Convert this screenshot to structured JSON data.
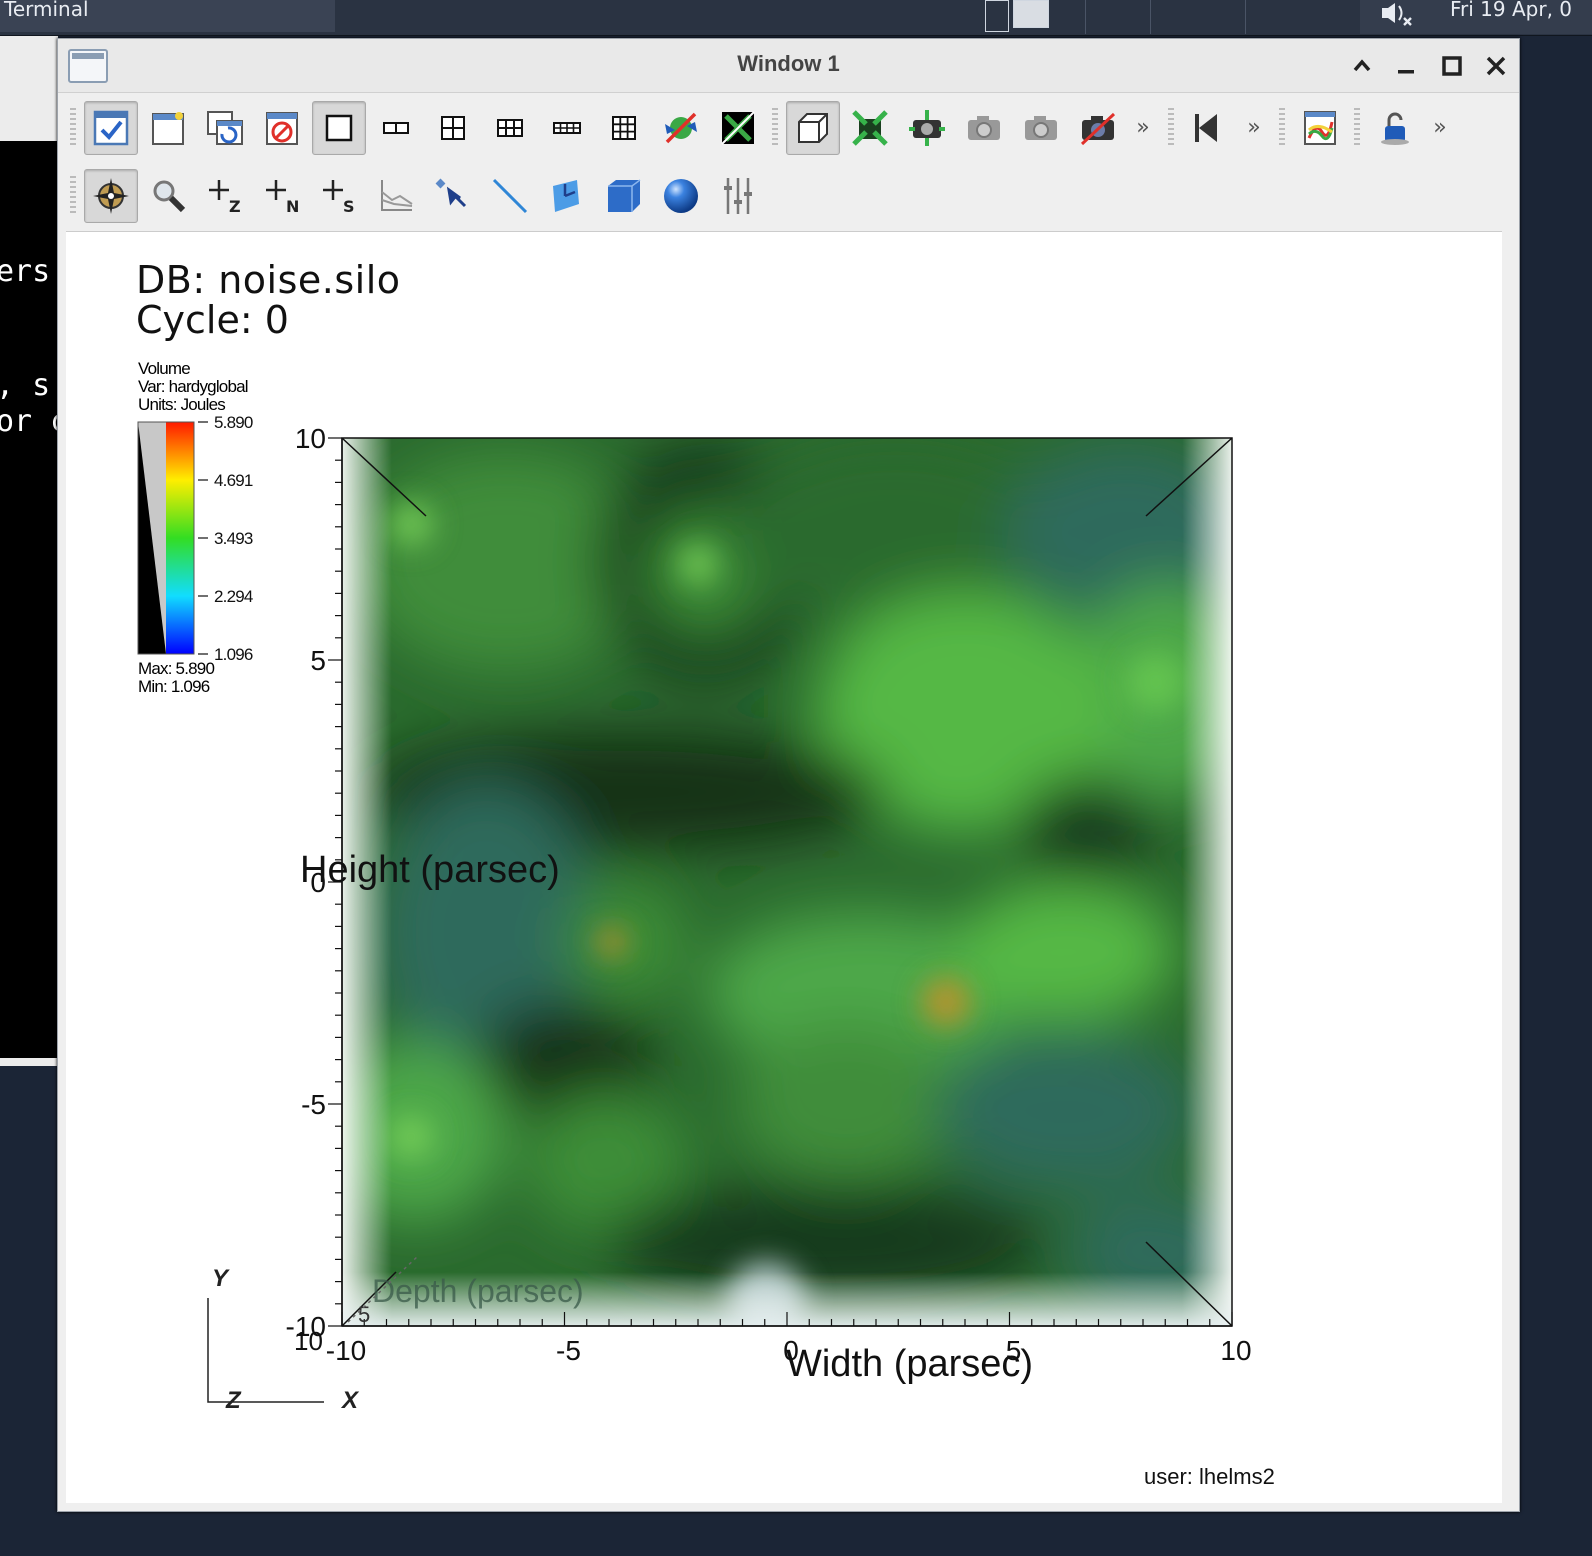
{
  "taskbar": {
    "task_label": "Terminal",
    "clock": "Fri 19 Apr, 0"
  },
  "background_terminal": {
    "lines": [
      "ers",
      ", s",
      "or c"
    ]
  },
  "window": {
    "title": "Window 1",
    "controls": {
      "shade": "^",
      "minimize": "_",
      "maximize": "□",
      "close": "×"
    }
  },
  "toolbar1": {
    "items": [
      {
        "name": "active-window-button",
        "icon": "active-window-check-icon",
        "on": true
      },
      {
        "name": "new-window-button",
        "icon": "new-window-icon",
        "on": false
      },
      {
        "name": "clone-window-button",
        "icon": "clone-window-icon",
        "on": false
      },
      {
        "name": "delete-window-button",
        "icon": "delete-window-icon",
        "on": false
      },
      {
        "name": "layout-1x1-button",
        "icon": "layout-1x1-icon",
        "on": true
      },
      {
        "name": "layout-1x2-button",
        "icon": "layout-1x2-icon",
        "on": false
      },
      {
        "name": "layout-2x2-button",
        "icon": "layout-2x2-icon",
        "on": false
      },
      {
        "name": "layout-2x3-button",
        "icon": "layout-2x3-icon",
        "on": false
      },
      {
        "name": "layout-2x4-button",
        "icon": "layout-2x4-icon",
        "on": false
      },
      {
        "name": "layout-3x3-button",
        "icon": "layout-3x3-icon",
        "on": false
      },
      {
        "name": "toggle-lock-button",
        "icon": "lock-arrows-icon",
        "on": false
      },
      {
        "name": "toggle-full-frame-button",
        "icon": "full-frame-icon",
        "on": false
      }
    ],
    "view_items": [
      {
        "name": "perspective-button",
        "icon": "perspective-cube-icon",
        "on": true
      },
      {
        "name": "reset-view-button",
        "icon": "reset-view-icon",
        "on": false
      },
      {
        "name": "recenter-view-button",
        "icon": "recenter-view-icon",
        "on": false
      },
      {
        "name": "undo-view-button",
        "icon": "camera-undo-icon",
        "on": false
      },
      {
        "name": "redo-view-button",
        "icon": "camera-redo-icon",
        "on": false
      },
      {
        "name": "save-view-button",
        "icon": "camera-saved-icon",
        "on": false
      }
    ],
    "more": "»",
    "anim_items": [
      {
        "name": "animation-reverse-button",
        "icon": "animation-reverse-icon",
        "on": false
      }
    ],
    "misc_items": [
      {
        "name": "lineout-button",
        "icon": "lineout-window-icon",
        "on": false
      },
      {
        "name": "lock-view-button",
        "icon": "padlock-icon",
        "on": false
      }
    ]
  },
  "toolbar2": {
    "items": [
      {
        "name": "navigate-mode-button",
        "icon": "compass-icon",
        "on": true
      },
      {
        "name": "zoom-mode-button",
        "icon": "magnifier-icon",
        "on": false
      },
      {
        "name": "zone-pick-button",
        "icon": "pick-zone-icon",
        "label": "Z",
        "on": false
      },
      {
        "name": "node-pick-button",
        "icon": "pick-node-icon",
        "label": "N",
        "on": false
      },
      {
        "name": "spreadsheet-pick-button",
        "icon": "pick-spreadsheet-icon",
        "label": "S",
        "on": false
      },
      {
        "name": "curve-lineout-button",
        "icon": "curve-icon",
        "on": false
      },
      {
        "name": "point-tool-button",
        "icon": "point-arrow-icon",
        "on": false
      },
      {
        "name": "line-tool-button",
        "icon": "line-icon",
        "on": false
      },
      {
        "name": "plane-tool-button",
        "icon": "plane-icon",
        "on": false
      },
      {
        "name": "box-tool-button",
        "icon": "box-icon",
        "on": false
      },
      {
        "name": "sphere-tool-button",
        "icon": "sphere-icon",
        "on": false
      },
      {
        "name": "axis-restriction-button",
        "icon": "sliders-icon",
        "on": false
      }
    ]
  },
  "viewport": {
    "db_label": "DB: noise.silo",
    "cycle_label": "Cycle: 0",
    "legend": {
      "plot_type": "Volume",
      "var_line": "Var: hardyglobal",
      "units_line": "Units: Joules",
      "ticks": [
        "5.890",
        "4.691",
        "3.493",
        "2.294",
        "1.096"
      ],
      "max_line": "Max:  5.890",
      "min_line": "Min:  1.096"
    },
    "axes": {
      "y_ticks": [
        "10",
        "5",
        "0",
        "-5",
        "-10"
      ],
      "x_ticks": [
        "-10",
        "-5",
        "0",
        "5",
        "10"
      ],
      "z_ticks": [
        "10",
        "5"
      ],
      "x_title": "Width (parsec)",
      "y_title": "Height (parsec)",
      "z_title": "Depth (parsec)"
    },
    "triad": {
      "x": "X",
      "y": "Y",
      "z": "Z"
    },
    "user_label": "user: lhelms2",
    "colors": {
      "volume_dark": "#173a1c",
      "volume_mid": "#2e7a33",
      "volume_light": "#55b845",
      "volume_teal": "#2f6a5c",
      "hot_spot": "#c8902a"
    }
  }
}
